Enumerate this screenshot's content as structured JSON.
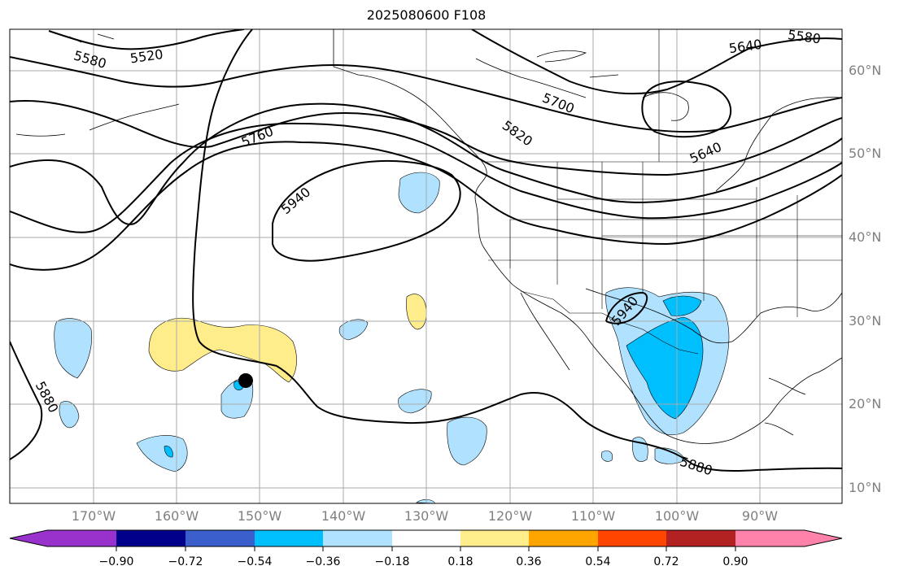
{
  "title": "2025080600 F108",
  "lat_labels": [
    "60°N",
    "50°N",
    "40°N",
    "30°N",
    "20°N",
    "10°N"
  ],
  "lon_labels": [
    "170°W",
    "160°W",
    "150°W",
    "140°W",
    "130°W",
    "120°W",
    "110°W",
    "100°W",
    "90°W"
  ],
  "contour_labels": [
    "5520",
    "5580",
    "5580",
    "5640",
    "5700",
    "5760",
    "5820",
    "5640",
    "5940",
    "5940",
    "5880",
    "5880"
  ],
  "colorbar": {
    "ticks": [
      "−0.90",
      "−0.72",
      "−0.54",
      "−0.36",
      "−0.18",
      "0.18",
      "0.36",
      "0.54",
      "0.72",
      "0.90"
    ],
    "colors": [
      "#9932cc",
      "#00008b",
      "#3a5fcd",
      "#00bfff",
      "#b0e2ff",
      "#ffffff",
      "#ffec8b",
      "#ffa500",
      "#ff4500",
      "#b22222",
      "#ff82ab"
    ]
  },
  "marker_color": "#000000"
}
